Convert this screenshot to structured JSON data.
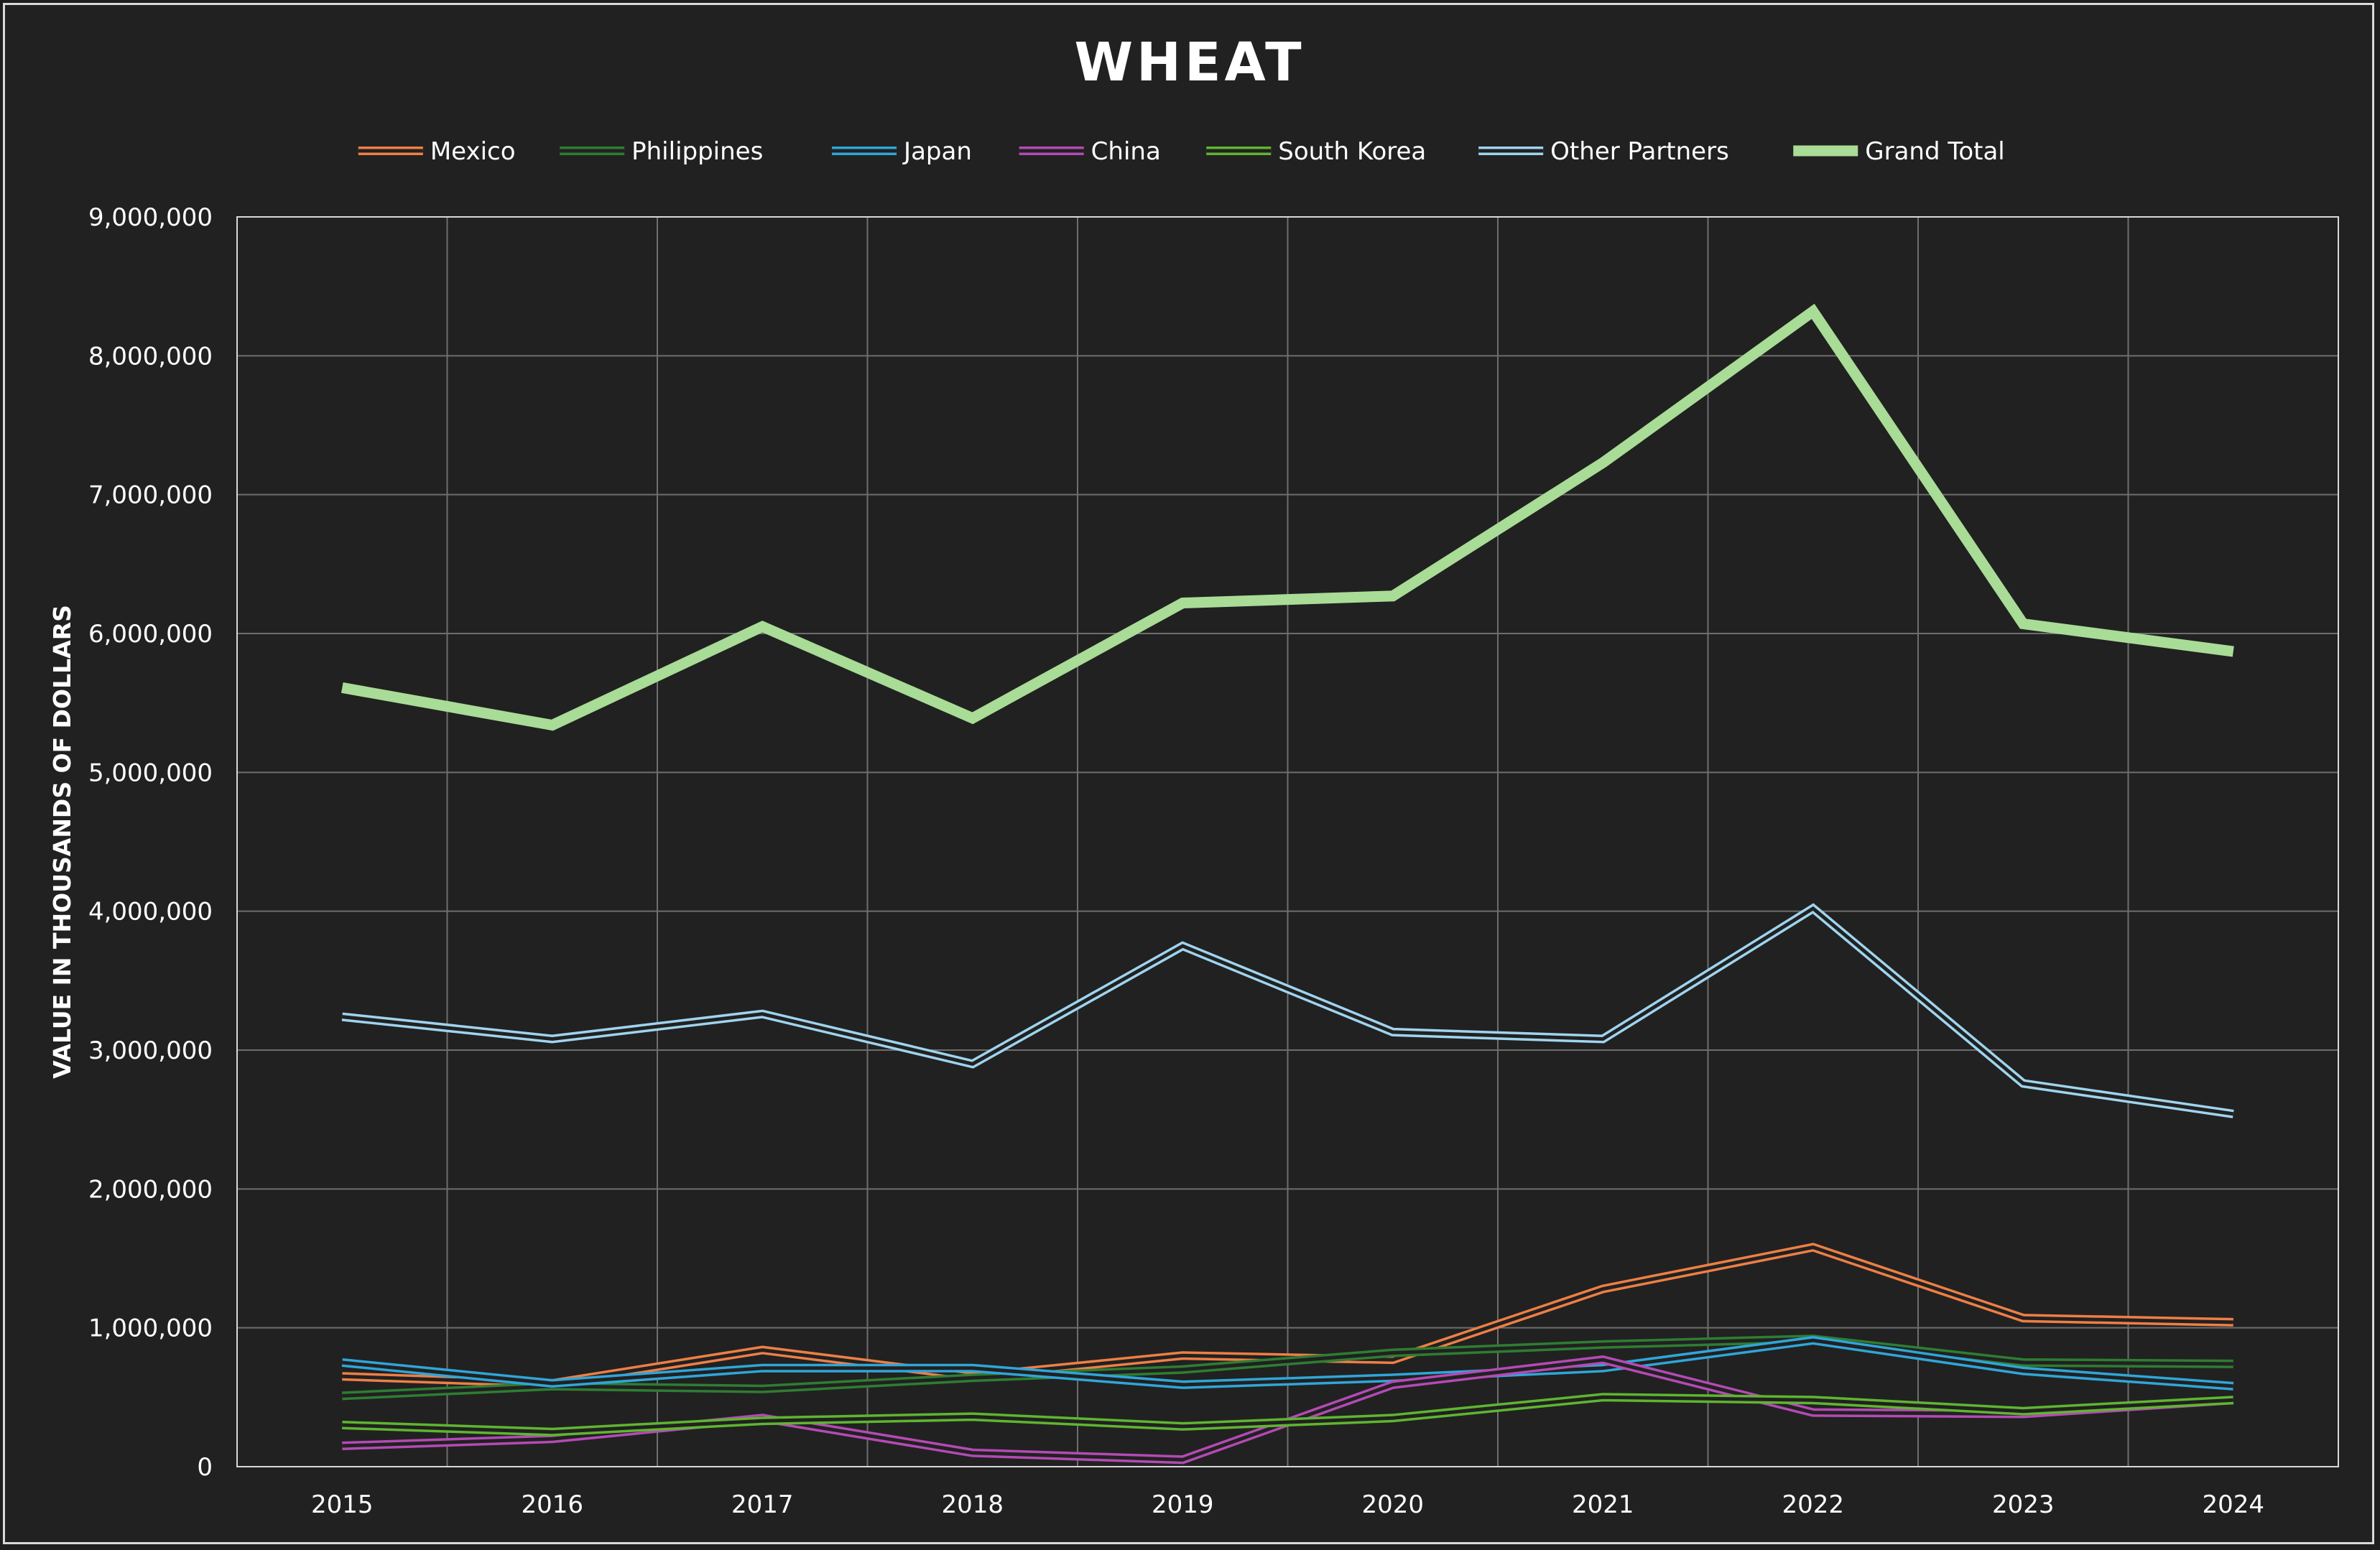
{
  "chart_data": {
    "type": "line",
    "title": "WHEAT",
    "ylabel": "VALUE IN THOUSANDS OF DOLLARS",
    "xlabel": "",
    "categories": [
      "2015",
      "2016",
      "2017",
      "2018",
      "2019",
      "2020",
      "2021",
      "2022",
      "2023",
      "2024"
    ],
    "ylim": [
      0,
      9000000
    ],
    "yticks": [
      0,
      1000000,
      2000000,
      3000000,
      4000000,
      5000000,
      6000000,
      7000000,
      8000000,
      9000000
    ],
    "ytick_labels": [
      "0",
      "1,000,000",
      "2,000,000",
      "3,000,000",
      "4,000,000",
      "5,000,000",
      "6,000,000",
      "7,000,000",
      "8,000,000",
      "9,000,000"
    ],
    "grid": true,
    "legend_position": "top",
    "series": [
      {
        "name": "Mexico",
        "color": "#ee7f45",
        "style": "double",
        "values": [
          650000,
          600000,
          840000,
          650000,
          800000,
          770000,
          1280000,
          1580000,
          1070000,
          1040000
        ]
      },
      {
        "name": "Philippines",
        "color": "#2e7d32",
        "style": "double",
        "values": [
          510000,
          580000,
          560000,
          640000,
          700000,
          820000,
          880000,
          920000,
          750000,
          740000
        ]
      },
      {
        "name": "Japan",
        "color": "#2fa6d9",
        "style": "double",
        "values": [
          750000,
          600000,
          710000,
          710000,
          590000,
          640000,
          710000,
          910000,
          690000,
          580000
        ]
      },
      {
        "name": "China",
        "color": "#b44ab5",
        "style": "double",
        "values": [
          150000,
          200000,
          350000,
          100000,
          50000,
          590000,
          770000,
          390000,
          380000,
          480000
        ]
      },
      {
        "name": "South Korea",
        "color": "#5fb530",
        "style": "double",
        "values": [
          300000,
          250000,
          330000,
          360000,
          290000,
          350000,
          500000,
          480000,
          400000,
          480000
        ]
      },
      {
        "name": "Other Partners",
        "color": "#9fd4ee",
        "style": "double",
        "values": [
          3240000,
          3080000,
          3260000,
          2900000,
          3750000,
          3130000,
          3080000,
          4020000,
          2760000,
          2540000
        ]
      },
      {
        "name": "Grand Total",
        "color": "#a9dc96",
        "style": "thick",
        "values": [
          5610000,
          5340000,
          6050000,
          5390000,
          6220000,
          6270000,
          7230000,
          8320000,
          6070000,
          5870000
        ]
      }
    ]
  }
}
